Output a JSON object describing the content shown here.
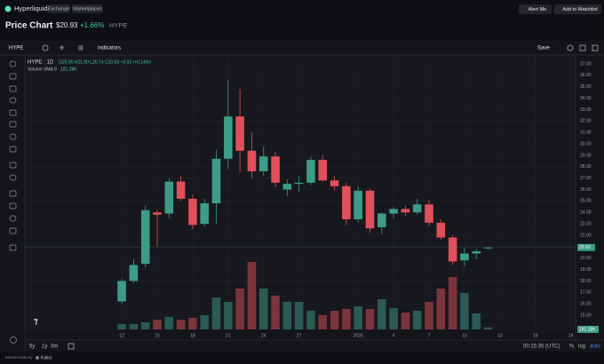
{
  "ui": {
    "brand": "Hyperliquid",
    "tags": [
      "Exchange",
      "Marketplaces"
    ],
    "buttons": [
      "Alert Me",
      "Add to Watchlist"
    ],
    "heading": "Price Chart",
    "price": "$20.93",
    "change": "+1.66%",
    "symbol": "HYPE",
    "toolbar": {
      "symbol": "HYPE",
      "indicators": "Indicators",
      "save": "Save"
    },
    "legend": {
      "title": "HYPE · 1D",
      "ohlc": "O20.90 H21.00 L20.74 C20.93 +0.03 (+0.14%)",
      "volume": "Volume SMA 9",
      "volume_value": "181.28K"
    },
    "ranges": [
      "5y",
      "1y",
      "3m"
    ],
    "clock": "00:15:35 (UTC)",
    "scale_modes": [
      "%",
      "log",
      "auto"
    ],
    "footer": "Market Data by",
    "provider": "Kaiko"
  },
  "chart_data": {
    "type": "candlestick",
    "up_color": "#3d9c87",
    "down_color": "#e0505a",
    "grid": true,
    "x": [
      0,
      1,
      2,
      3,
      4,
      5,
      6,
      7,
      8,
      9,
      10,
      11,
      12,
      13,
      14,
      15,
      16,
      17,
      18,
      19,
      20,
      21,
      22,
      23,
      24,
      25,
      26,
      27,
      28,
      29,
      30,
      31
    ],
    "open": [
      16.2,
      18.0,
      19.5,
      24.0,
      23.9,
      26.7,
      25.2,
      23.0,
      24.8,
      28.7,
      32.4,
      29.4,
      27.6,
      28.9,
      26.0,
      26.5,
      26.6,
      28.6,
      26.8,
      26.3,
      23.4,
      25.9,
      22.7,
      23.9,
      24.3,
      24.0,
      24.7,
      23.1,
      21.8,
      19.8,
      20.4,
      20.9
    ],
    "high": [
      18.2,
      19.9,
      24.6,
      24.2,
      27.0,
      27.2,
      25.6,
      25.2,
      29.5,
      35.6,
      34.8,
      31.0,
      29.8,
      29.3,
      26.9,
      27.2,
      28.9,
      29.0,
      27.2,
      26.6,
      26.3,
      26.1,
      24.0,
      24.5,
      24.6,
      25.2,
      25.1,
      23.4,
      22.0,
      20.9,
      20.8,
      21.0
    ],
    "low": [
      16.0,
      17.8,
      19.2,
      21.0,
      23.5,
      25.0,
      22.5,
      22.8,
      23.0,
      27.8,
      27.5,
      27.0,
      27.2,
      26.2,
      25.4,
      25.8,
      26.4,
      26.7,
      25.9,
      22.9,
      23.1,
      22.2,
      22.1,
      23.5,
      23.7,
      23.8,
      22.8,
      21.6,
      19.4,
      19.3,
      19.9,
      20.74
    ],
    "close": [
      18.0,
      19.4,
      24.2,
      23.8,
      26.7,
      25.2,
      22.9,
      24.8,
      28.7,
      32.4,
      29.4,
      27.6,
      28.9,
      26.6,
      26.5,
      26.6,
      28.6,
      26.8,
      26.3,
      23.4,
      25.9,
      22.6,
      23.9,
      24.3,
      24.0,
      24.7,
      23.1,
      21.8,
      19.7,
      20.4,
      20.6,
      20.93
    ],
    "volume": [
      480000,
      480000,
      640000,
      880000,
      1120000,
      880000,
      1040000,
      1280000,
      2880000,
      2480000,
      3680000,
      6080000,
      3680000,
      3040000,
      2480000,
      2480000,
      1680000,
      1280000,
      1680000,
      1840000,
      2080000,
      1840000,
      2720000,
      1920000,
      1520000,
      1680000,
      2480000,
      3680000,
      4720000,
      3280000,
      1440000,
      181280
    ],
    "xlim": [
      -8.2,
      38.4
    ],
    "xticks": [
      {
        "value": 0,
        "label": "12"
      },
      {
        "value": 3,
        "label": "15"
      },
      {
        "value": 6,
        "label": "18"
      },
      {
        "value": 9,
        "label": "21"
      },
      {
        "value": 12,
        "label": "24"
      },
      {
        "value": 15,
        "label": "27"
      },
      {
        "value": 20,
        "label": "2025"
      },
      {
        "value": 23,
        "label": "4"
      },
      {
        "value": 26,
        "label": "7"
      },
      {
        "value": 29,
        "label": "10"
      },
      {
        "value": 32,
        "label": "13"
      },
      {
        "value": 35,
        "label": "16"
      },
      {
        "value": 38,
        "label": "19"
      }
    ],
    "ylim": [
      13.68,
      37.78
    ],
    "yticks": [
      {
        "value": 15,
        "label": "15.00"
      },
      {
        "value": 16,
        "label": "16.00"
      },
      {
        "value": 17,
        "label": "17.00"
      },
      {
        "value": 18,
        "label": "18.00"
      },
      {
        "value": 19,
        "label": "19.00"
      },
      {
        "value": 20,
        "label": "20.00"
      },
      {
        "value": 21,
        "label": "21.00"
      },
      {
        "value": 22,
        "label": "22.00"
      },
      {
        "value": 23,
        "label": "23.00"
      },
      {
        "value": 24,
        "label": "24.00"
      },
      {
        "value": 25,
        "label": "25.00"
      },
      {
        "value": 26,
        "label": "26.00"
      },
      {
        "value": 27,
        "label": "27.00"
      },
      {
        "value": 28,
        "label": "28.00"
      },
      {
        "value": 29,
        "label": "29.00"
      },
      {
        "value": 30,
        "label": "30.00"
      },
      {
        "value": 31,
        "label": "31.00"
      },
      {
        "value": 32,
        "label": "32.00"
      },
      {
        "value": 33,
        "label": "33.00"
      },
      {
        "value": 34,
        "label": "34.00"
      },
      {
        "value": 35,
        "label": "35.00"
      },
      {
        "value": 36,
        "label": "36.00"
      },
      {
        "value": 37,
        "label": "37.00"
      }
    ]
  }
}
